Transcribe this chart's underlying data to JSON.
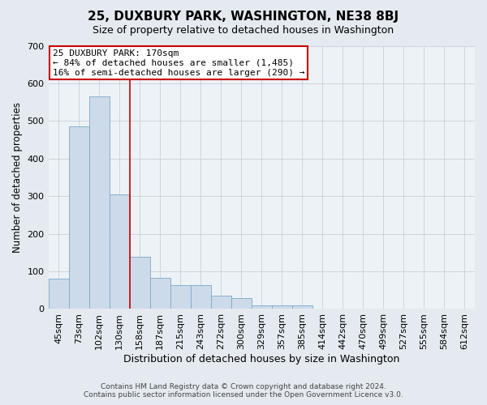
{
  "title": "25, DUXBURY PARK, WASHINGTON, NE38 8BJ",
  "subtitle": "Size of property relative to detached houses in Washington",
  "xlabel": "Distribution of detached houses by size in Washington",
  "ylabel": "Number of detached properties",
  "footer_line1": "Contains HM Land Registry data © Crown copyright and database right 2024.",
  "footer_line2": "Contains public sector information licensed under the Open Government Licence v3.0.",
  "annotation_line1": "25 DUXBURY PARK: 170sqm",
  "annotation_line2": "← 84% of detached houses are smaller (1,485)",
  "annotation_line3": "16% of semi-detached houses are larger (290) →",
  "bar_labels": [
    "45sqm",
    "73sqm",
    "102sqm",
    "130sqm",
    "158sqm",
    "187sqm",
    "215sqm",
    "243sqm",
    "272sqm",
    "300sqm",
    "329sqm",
    "357sqm",
    "385sqm",
    "414sqm",
    "442sqm",
    "470sqm",
    "499sqm",
    "527sqm",
    "555sqm",
    "584sqm",
    "612sqm"
  ],
  "bar_heights": [
    80,
    485,
    565,
    305,
    138,
    83,
    63,
    63,
    35,
    28,
    10,
    10,
    10,
    0,
    0,
    0,
    0,
    0,
    0,
    0,
    0
  ],
  "bar_color": "#cddaea",
  "bar_edge_color": "#7aaac8",
  "grid_color": "#c8d0d8",
  "vline_x_index": 3.5,
  "vline_color": "#cc0000",
  "ylim": [
    0,
    700
  ],
  "yticks": [
    0,
    100,
    200,
    300,
    400,
    500,
    600,
    700
  ],
  "background_color": "#e4eaf0",
  "plot_background_color": "#edf2f7",
  "title_fontsize": 11,
  "subtitle_fontsize": 9,
  "ylabel_fontsize": 8.5,
  "xlabel_fontsize": 9,
  "tick_fontsize": 8,
  "annotation_fontsize": 8,
  "footer_fontsize": 6.5
}
